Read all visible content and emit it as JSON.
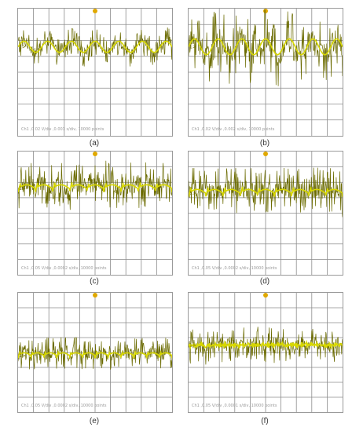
{
  "colors": {
    "trace": "#d8d800",
    "trace_dark": "#6b6b00",
    "grid": "#8c8c8c",
    "marker": "#e0a800",
    "border": "#9a9a9a"
  },
  "chart_data": [
    {
      "type": "line",
      "caption": "(a)",
      "readout": "Ch1 ,0.02 V/div ,0.001 s/div, 10000 points",
      "channel_marker": "1>",
      "grid": true,
      "divisions_x": 10,
      "divisions_y": 8,
      "baseline_div": 2.4,
      "pattern": "sine",
      "cycles": 6.5,
      "wave_amp_div": 0.35,
      "noise_amp_div": 0.9
    },
    {
      "type": "line",
      "caption": "(b)",
      "readout": "Ch1 ,0.02 V/div ,0.002 s/div, 10000 points",
      "channel_marker": "1>",
      "grid": true,
      "divisions_x": 10,
      "divisions_y": 8,
      "baseline_div": 2.4,
      "pattern": "sine",
      "cycles": 6.5,
      "wave_amp_div": 0.5,
      "noise_amp_div": 2.0
    },
    {
      "type": "line",
      "caption": "(c)",
      "readout": "Ch1 ,0.05 V/div ,0.0002 s/div, 10000 points",
      "channel_marker": "1>",
      "grid": true,
      "divisions_x": 10,
      "divisions_y": 8,
      "baseline_div": 2.4,
      "pattern": "spike",
      "cycles": 9,
      "wave_amp_div": 0.4,
      "noise_amp_div": 1.5
    },
    {
      "type": "line",
      "caption": "(d)",
      "readout": "Ch1 ,0.05 V/div ,0.0002 s/div, 10000 points",
      "channel_marker": "1>",
      "grid": true,
      "divisions_x": 10,
      "divisions_y": 8,
      "baseline_div": 2.7,
      "pattern": "spike",
      "cycles": 9,
      "wave_amp_div": 0.4,
      "noise_amp_div": 1.5
    },
    {
      "type": "line",
      "caption": "(e)",
      "readout": "Ch1 ,0.05 V/div ,0.0002 s/div, 10000 points",
      "channel_marker": "1>",
      "grid": true,
      "divisions_x": 10,
      "divisions_y": 8,
      "baseline_div": 4.2,
      "pattern": "spike",
      "cycles": 12,
      "wave_amp_div": 0.3,
      "noise_amp_div": 1.1
    },
    {
      "type": "line",
      "caption": "(f)",
      "readout": "Ch1 ,0.05 V/div ,0.0001 s/div, 10000 points",
      "channel_marker": "1>",
      "grid": true,
      "divisions_x": 10,
      "divisions_y": 8,
      "baseline_div": 3.5,
      "pattern": "dense",
      "cycles": 16,
      "wave_amp_div": 0.2,
      "noise_amp_div": 1.2
    }
  ]
}
